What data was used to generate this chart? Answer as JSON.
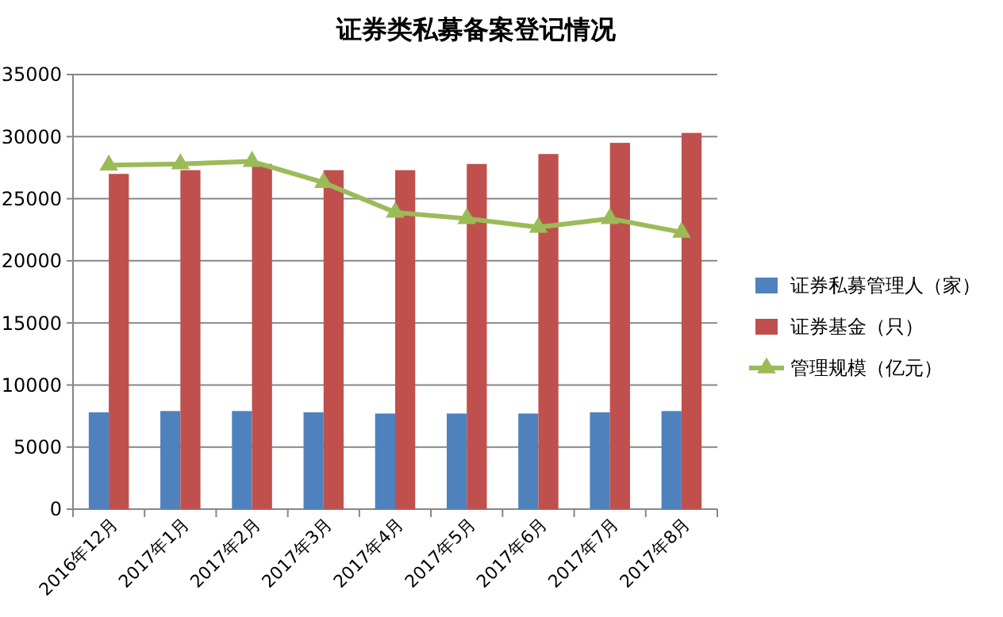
{
  "chart_data": {
    "type": "bar",
    "title": "证券类私募备案登记情况",
    "categories": [
      "2016年12月",
      "2017年1月",
      "2017年2月",
      "2017年3月",
      "2017年4月",
      "2017年5月",
      "2017年6月",
      "2017年7月",
      "2017年8月"
    ],
    "series": [
      {
        "name": "证券私募管理人（家）",
        "color": "#4f81bd",
        "values": [
          7800,
          7900,
          7900,
          7800,
          7700,
          7700,
          7700,
          7800,
          7900
        ]
      },
      {
        "name": "证券基金（只）",
        "color": "#c0504d",
        "values": [
          27000,
          27300,
          27800,
          27300,
          27300,
          27800,
          28600,
          29500,
          30300
        ]
      },
      {
        "name": "管理规模（亿元）",
        "type": "line",
        "color": "#9bbb59",
        "marker": "triangle",
        "values": [
          27700,
          27800,
          28000,
          26300,
          23900,
          23400,
          22700,
          23400,
          22300
        ]
      }
    ],
    "ylim": [
      0,
      35000
    ],
    "yticks": [
      0,
      5000,
      10000,
      15000,
      20000,
      25000,
      30000,
      35000
    ],
    "grid": "y",
    "legend": "right"
  }
}
